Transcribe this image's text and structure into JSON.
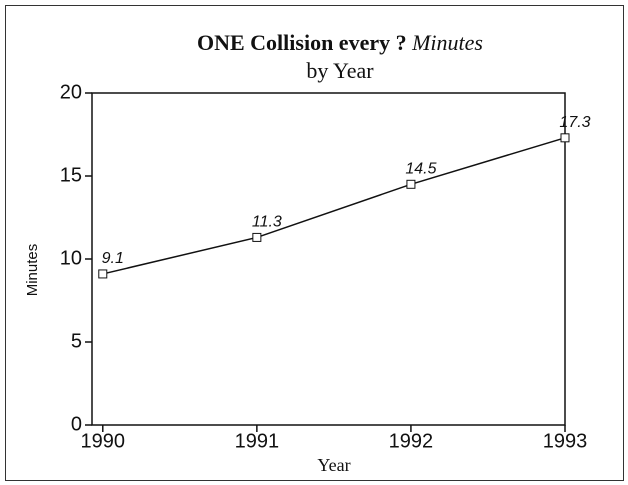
{
  "chart_data": {
    "type": "line",
    "title": [
      "ONE Collision every ?",
      "Minutes"
    ],
    "subtitle": "by Year",
    "xlabel": "Year",
    "ylabel": "Minutes",
    "x": [
      1990,
      1991,
      1992,
      1993
    ],
    "series": [
      {
        "name": "Minutes",
        "color": "#111111",
        "values": [
          9.1,
          11.3,
          14.5,
          17.3
        ]
      }
    ],
    "xlim": [
      1989.93,
      1993.0
    ],
    "xticks": [
      1990,
      1991,
      1992,
      1993
    ],
    "ylim": [
      0,
      20
    ],
    "yticks": [
      0,
      5,
      10,
      15,
      20
    ],
    "marker": "square",
    "data_labels": true,
    "grid": false
  }
}
